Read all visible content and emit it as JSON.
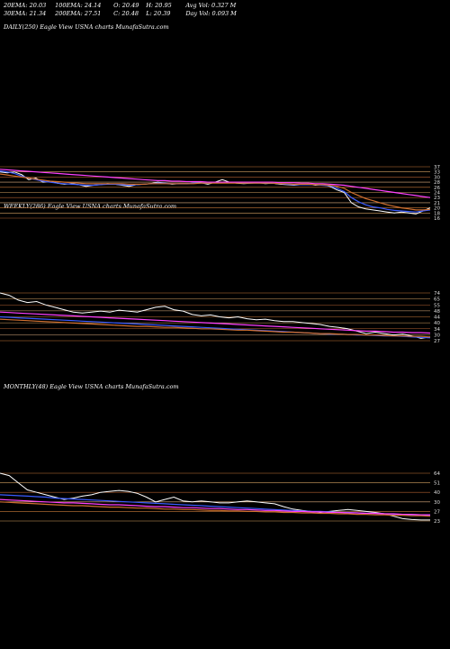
{
  "stats": {
    "ema20": "20EMA: 20.03",
    "ema100": "100EMA: 24.14",
    "open": "O: 20.49",
    "high": "H: 20.95",
    "avgvol": "Avg Vol: 0.327 M",
    "ema30": "30EMA: 21.34",
    "ema200": "200EMA: 27.51",
    "close": "C: 20.48",
    "low": "L: 20.39",
    "dayvol": "Day Vol: 0.093 M"
  },
  "chart_data": [
    {
      "type": "line",
      "label": "DAILY(250) Eagle   View  USNA charts MunafaSutra.com",
      "yticks": [
        "37",
        "33",
        "30",
        "28",
        "26",
        "24",
        "23",
        "21",
        "20",
        "18",
        "16"
      ],
      "series": [
        {
          "values": [
            0.1,
            0.12,
            0.1,
            0.15,
            0.25,
            0.22,
            0.3,
            0.28,
            0.32,
            0.34,
            0.33,
            0.35,
            0.38,
            0.36,
            0.35,
            0.33,
            0.34,
            0.36,
            0.38,
            0.35,
            0.34,
            0.33,
            0.3,
            0.32,
            0.34,
            0.33,
            0.33,
            0.32,
            0.31,
            0.34,
            0.3,
            0.25,
            0.3,
            0.32,
            0.33,
            0.32,
            0.31,
            0.33,
            0.32,
            0.34,
            0.35,
            0.36,
            0.35,
            0.34,
            0.36,
            0.35,
            0.38,
            0.45,
            0.5,
            0.7,
            0.78,
            0.82,
            0.84,
            0.86,
            0.88,
            0.9,
            0.88,
            0.9,
            0.92,
            0.86,
            0.8
          ],
          "color": "#ffffff"
        },
        {
          "values": [
            0.08,
            0.1,
            0.13,
            0.18,
            0.22,
            0.25,
            0.28,
            0.3,
            0.32,
            0.33,
            0.34,
            0.35,
            0.36,
            0.36,
            0.35,
            0.34,
            0.34,
            0.35,
            0.36,
            0.35,
            0.34,
            0.33,
            0.32,
            0.32,
            0.33,
            0.33,
            0.33,
            0.32,
            0.32,
            0.32,
            0.31,
            0.3,
            0.3,
            0.31,
            0.32,
            0.32,
            0.32,
            0.32,
            0.32,
            0.33,
            0.34,
            0.35,
            0.35,
            0.35,
            0.35,
            0.36,
            0.37,
            0.42,
            0.48,
            0.6,
            0.68,
            0.74,
            0.78,
            0.8,
            0.83,
            0.85,
            0.86,
            0.87,
            0.88,
            0.86,
            0.84
          ],
          "color": "#3a5bff"
        },
        {
          "values": [
            0.05,
            0.06,
            0.07,
            0.08,
            0.09,
            0.1,
            0.11,
            0.12,
            0.13,
            0.14,
            0.15,
            0.16,
            0.17,
            0.18,
            0.19,
            0.2,
            0.21,
            0.22,
            0.23,
            0.24,
            0.25,
            0.26,
            0.27,
            0.27,
            0.28,
            0.28,
            0.29,
            0.29,
            0.29,
            0.3,
            0.3,
            0.3,
            0.3,
            0.3,
            0.3,
            0.3,
            0.3,
            0.3,
            0.3,
            0.31,
            0.31,
            0.31,
            0.32,
            0.32,
            0.33,
            0.33,
            0.34,
            0.35,
            0.36,
            0.38,
            0.4,
            0.42,
            0.44,
            0.46,
            0.48,
            0.5,
            0.52,
            0.54,
            0.56,
            0.58,
            0.6
          ],
          "color": "#ff40ff"
        },
        {
          "values": [
            0.14,
            0.16,
            0.18,
            0.2,
            0.22,
            0.24,
            0.26,
            0.28,
            0.29,
            0.3,
            0.31,
            0.32,
            0.33,
            0.33,
            0.33,
            0.33,
            0.33,
            0.33,
            0.34,
            0.34,
            0.34,
            0.33,
            0.33,
            0.33,
            0.33,
            0.33,
            0.33,
            0.33,
            0.32,
            0.32,
            0.32,
            0.32,
            0.32,
            0.32,
            0.32,
            0.32,
            0.32,
            0.32,
            0.32,
            0.33,
            0.33,
            0.34,
            0.34,
            0.34,
            0.35,
            0.35,
            0.36,
            0.38,
            0.42,
            0.5,
            0.56,
            0.62,
            0.66,
            0.7,
            0.74,
            0.77,
            0.8,
            0.82,
            0.84,
            0.84,
            0.83
          ],
          "color": "#d07030"
        }
      ]
    },
    {
      "type": "line",
      "label": "WEEKLY(286) Eagle   View  USNA charts MunafaSutra.com",
      "yticks": [
        "74",
        "65",
        "55",
        "48",
        "44",
        "40",
        "34",
        "30",
        "27"
      ],
      "series": [
        {
          "values": [
            0.0,
            0.05,
            0.15,
            0.2,
            0.18,
            0.25,
            0.3,
            0.35,
            0.4,
            0.42,
            0.4,
            0.38,
            0.4,
            0.36,
            0.38,
            0.4,
            0.35,
            0.3,
            0.28,
            0.35,
            0.38,
            0.45,
            0.48,
            0.46,
            0.5,
            0.52,
            0.5,
            0.54,
            0.56,
            0.55,
            0.58,
            0.6,
            0.6,
            0.62,
            0.64,
            0.66,
            0.7,
            0.72,
            0.75,
            0.8,
            0.85,
            0.82,
            0.85,
            0.88,
            0.86,
            0.9,
            0.95,
            0.92
          ],
          "color": "#ffffff"
        },
        {
          "values": [
            0.5,
            0.51,
            0.52,
            0.53,
            0.54,
            0.55,
            0.56,
            0.57,
            0.58,
            0.59,
            0.6,
            0.61,
            0.62,
            0.63,
            0.64,
            0.65,
            0.66,
            0.67,
            0.68,
            0.69,
            0.7,
            0.71,
            0.72,
            0.73,
            0.74,
            0.75,
            0.76,
            0.77,
            0.78,
            0.79,
            0.8,
            0.81,
            0.82,
            0.83,
            0.84,
            0.85,
            0.86,
            0.86,
            0.87,
            0.88,
            0.88,
            0.89,
            0.9,
            0.9,
            0.91,
            0.92,
            0.93,
            0.94
          ],
          "color": "#3a5bff"
        },
        {
          "values": [
            0.4,
            0.41,
            0.42,
            0.43,
            0.44,
            0.45,
            0.46,
            0.47,
            0.48,
            0.49,
            0.5,
            0.51,
            0.52,
            0.53,
            0.54,
            0.55,
            0.56,
            0.57,
            0.58,
            0.59,
            0.6,
            0.61,
            0.62,
            0.63,
            0.64,
            0.65,
            0.66,
            0.67,
            0.68,
            0.69,
            0.7,
            0.71,
            0.72,
            0.73,
            0.74,
            0.75,
            0.76,
            0.77,
            0.78,
            0.79,
            0.8,
            0.8,
            0.81,
            0.82,
            0.82,
            0.83,
            0.83,
            0.84
          ],
          "color": "#ff40ff"
        },
        {
          "values": [
            0.55,
            0.56,
            0.57,
            0.58,
            0.59,
            0.6,
            0.61,
            0.62,
            0.63,
            0.64,
            0.65,
            0.66,
            0.67,
            0.68,
            0.69,
            0.7,
            0.7,
            0.71,
            0.72,
            0.72,
            0.73,
            0.74,
            0.75,
            0.75,
            0.76,
            0.77,
            0.78,
            0.78,
            0.79,
            0.8,
            0.81,
            0.82,
            0.82,
            0.83,
            0.84,
            0.85,
            0.85,
            0.86,
            0.87,
            0.87,
            0.88,
            0.88,
            0.89,
            0.9,
            0.9,
            0.91,
            0.91,
            0.92
          ],
          "color": "#d07030"
        }
      ]
    },
    {
      "type": "line",
      "label": "MONTHLY(48) Eagle   View  USNA charts MunafaSutra.com",
      "yticks": [
        "64",
        "51",
        "40",
        "30",
        "27",
        "23"
      ],
      "series": [
        {
          "values": [
            0.0,
            0.05,
            0.2,
            0.35,
            0.4,
            0.45,
            0.5,
            0.55,
            0.52,
            0.48,
            0.45,
            0.4,
            0.38,
            0.36,
            0.38,
            0.42,
            0.5,
            0.6,
            0.55,
            0.5,
            0.58,
            0.6,
            0.58,
            0.6,
            0.62,
            0.62,
            0.6,
            0.58,
            0.6,
            0.62,
            0.64,
            0.7,
            0.75,
            0.78,
            0.8,
            0.82,
            0.8,
            0.78,
            0.76,
            0.78,
            0.8,
            0.82,
            0.85,
            0.9,
            0.95,
            0.97,
            0.98,
            0.98
          ],
          "color": "#ffffff"
        },
        {
          "values": [
            0.45,
            0.46,
            0.47,
            0.48,
            0.49,
            0.5,
            0.52,
            0.53,
            0.54,
            0.55,
            0.56,
            0.57,
            0.58,
            0.59,
            0.6,
            0.61,
            0.62,
            0.63,
            0.64,
            0.65,
            0.66,
            0.67,
            0.68,
            0.69,
            0.7,
            0.71,
            0.72,
            0.73,
            0.74,
            0.75,
            0.76,
            0.77,
            0.78,
            0.79,
            0.8,
            0.8,
            0.81,
            0.82,
            0.82,
            0.83,
            0.84,
            0.84,
            0.85,
            0.86,
            0.86,
            0.87,
            0.88,
            0.88
          ],
          "color": "#3a5bff"
        },
        {
          "values": [
            0.55,
            0.56,
            0.57,
            0.58,
            0.59,
            0.6,
            0.61,
            0.62,
            0.62,
            0.63,
            0.64,
            0.65,
            0.66,
            0.66,
            0.67,
            0.68,
            0.69,
            0.7,
            0.7,
            0.71,
            0.72,
            0.72,
            0.73,
            0.74,
            0.74,
            0.75,
            0.76,
            0.76,
            0.77,
            0.78,
            0.78,
            0.79,
            0.8,
            0.8,
            0.81,
            0.81,
            0.82,
            0.82,
            0.83,
            0.83,
            0.84,
            0.84,
            0.85,
            0.85,
            0.86,
            0.86,
            0.87,
            0.87
          ],
          "color": "#ff40ff"
        },
        {
          "values": [
            0.6,
            0.61,
            0.62,
            0.63,
            0.64,
            0.65,
            0.66,
            0.67,
            0.68,
            0.68,
            0.69,
            0.7,
            0.71,
            0.71,
            0.72,
            0.73,
            0.73,
            0.74,
            0.75,
            0.75,
            0.76,
            0.76,
            0.77,
            0.78,
            0.78,
            0.79,
            0.79,
            0.8,
            0.8,
            0.81,
            0.81,
            0.82,
            0.82,
            0.83,
            0.83,
            0.84,
            0.84,
            0.85,
            0.85,
            0.86,
            0.86,
            0.87,
            0.87,
            0.88,
            0.88,
            0.89,
            0.89,
            0.9
          ],
          "color": "#d07030"
        }
      ]
    }
  ]
}
